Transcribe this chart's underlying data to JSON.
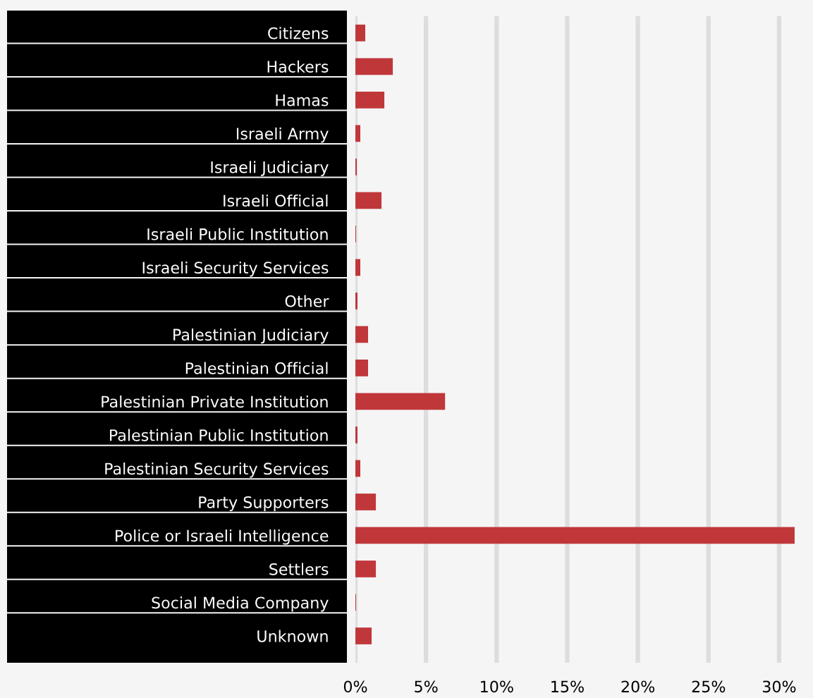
{
  "chart_data": {
    "type": "bar",
    "orientation": "horizontal",
    "categories": [
      "Citizens",
      "Hackers",
      "Hamas",
      "Israeli Army",
      "Israeli Judiciary",
      "Israeli Official",
      "Israeli Public Institution",
      "Israeli Security Services",
      "Other",
      "Palestinian Judiciary",
      "Palestinian Official",
      "Palestinian Private Institution",
      "Palestinian Public Institution",
      "Palestinian Security Services",
      "Party Supporters",
      "Police or Israeli Intelligence",
      "Settlers",
      "Social Media Company",
      "Unknown"
    ],
    "values": [
      0.7,
      2.65,
      2.05,
      0.35,
      0.1,
      1.85,
      0.05,
      0.35,
      0.15,
      0.9,
      0.9,
      6.35,
      0.15,
      0.35,
      1.45,
      31.1,
      1.45,
      0.05,
      1.15
    ],
    "color": "#c0373a",
    "xlim": [
      0,
      32.4
    ],
    "xticks": [
      {
        "value": 0,
        "label": "0%"
      },
      {
        "value": 5,
        "label": "5%"
      },
      {
        "value": 10,
        "label": "10%"
      },
      {
        "value": 15,
        "label": "15%"
      },
      {
        "value": 20,
        "label": "20%"
      },
      {
        "value": 25,
        "label": "25%"
      },
      {
        "value": 30,
        "label": "30%"
      }
    ],
    "grid": "x",
    "legend": false
  }
}
